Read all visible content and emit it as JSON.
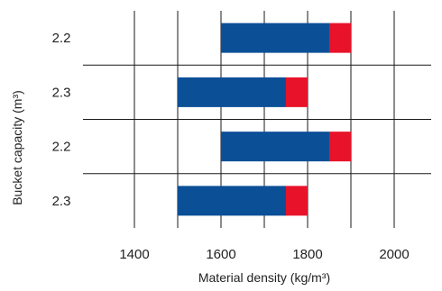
{
  "chart_data": {
    "type": "bar",
    "orientation": "horizontal",
    "stacked": true,
    "categories": [
      "2.2",
      "2.3",
      "2.2",
      "2.3"
    ],
    "series": [
      {
        "values": [
          [
            1600,
            1850
          ],
          [
            1500,
            1750
          ],
          [
            1600,
            1850
          ],
          [
            1500,
            1750
          ]
        ]
      },
      {
        "values": [
          [
            1850,
            1900
          ],
          [
            1750,
            1800
          ],
          [
            1850,
            1900
          ],
          [
            1750,
            1800
          ]
        ]
      }
    ],
    "xlabel": "Material density (kg/m³)",
    "ylabel": "Bucket capacity (m³)",
    "xlim": [
      1400,
      2100
    ],
    "xticks": [
      1400,
      1600,
      1800,
      2000
    ],
    "grid": true,
    "colors": {
      "series_0": "#0b4f97",
      "series_1": "#e8132a",
      "grid": "#1a1a1a",
      "text": "#222222"
    }
  }
}
